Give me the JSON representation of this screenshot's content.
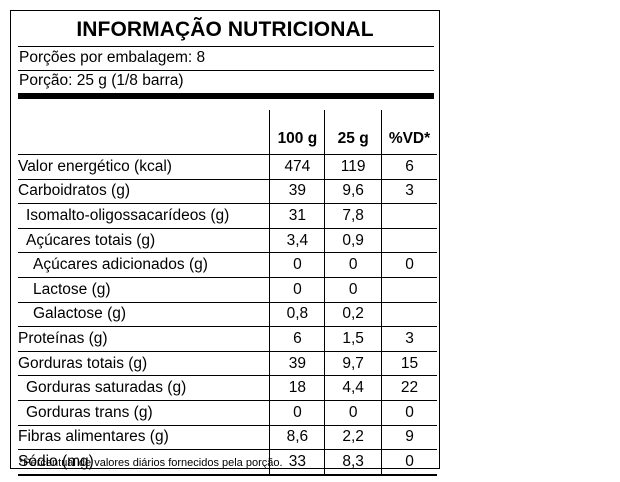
{
  "title": "INFORMAÇÃO NUTRICIONAL",
  "servings_per_package": "Porções por embalagem: 8",
  "serving_size": "Porção: 25 g (1/8 barra)",
  "columns": [
    "",
    "100 g",
    "25 g",
    "%VD*"
  ],
  "rows": [
    {
      "name": "Valor energético (kcal)",
      "indent": 0,
      "v100": "474",
      "v25": "119",
      "vd": "6"
    },
    {
      "name": "Carboidratos (g)",
      "indent": 0,
      "v100": "39",
      "v25": "9,6",
      "vd": "3"
    },
    {
      "name": "Isomalto-oligossacarídeos (g)",
      "indent": 1,
      "v100": "31",
      "v25": "7,8",
      "vd": ""
    },
    {
      "name": "Açúcares totais (g)",
      "indent": 1,
      "v100": "3,4",
      "v25": "0,9",
      "vd": ""
    },
    {
      "name": "Açúcares adicionados (g)",
      "indent": 2,
      "v100": "0",
      "v25": "0",
      "vd": "0"
    },
    {
      "name": "Lactose (g)",
      "indent": 2,
      "v100": "0",
      "v25": "0",
      "vd": ""
    },
    {
      "name": "Galactose (g)",
      "indent": 2,
      "v100": "0,8",
      "v25": "0,2",
      "vd": ""
    },
    {
      "name": "Proteínas (g)",
      "indent": 0,
      "v100": "6",
      "v25": "1,5",
      "vd": "3"
    },
    {
      "name": "Gorduras totais (g)",
      "indent": 0,
      "v100": "39",
      "v25": "9,7",
      "vd": "15"
    },
    {
      "name": "Gorduras saturadas (g)",
      "indent": 1,
      "v100": "18",
      "v25": "4,4",
      "vd": "22"
    },
    {
      "name": "Gorduras trans (g)",
      "indent": 1,
      "v100": "0",
      "v25": "0",
      "vd": "0"
    },
    {
      "name": "Fibras alimentares (g)",
      "indent": 0,
      "v100": "8,6",
      "v25": "2,2",
      "vd": "9"
    },
    {
      "name": "Sódio (mg)",
      "indent": 0,
      "v100": "33",
      "v25": "8,3",
      "vd": "0"
    }
  ],
  "footnote": "*Percentual de valores diários fornecidos pela porção."
}
